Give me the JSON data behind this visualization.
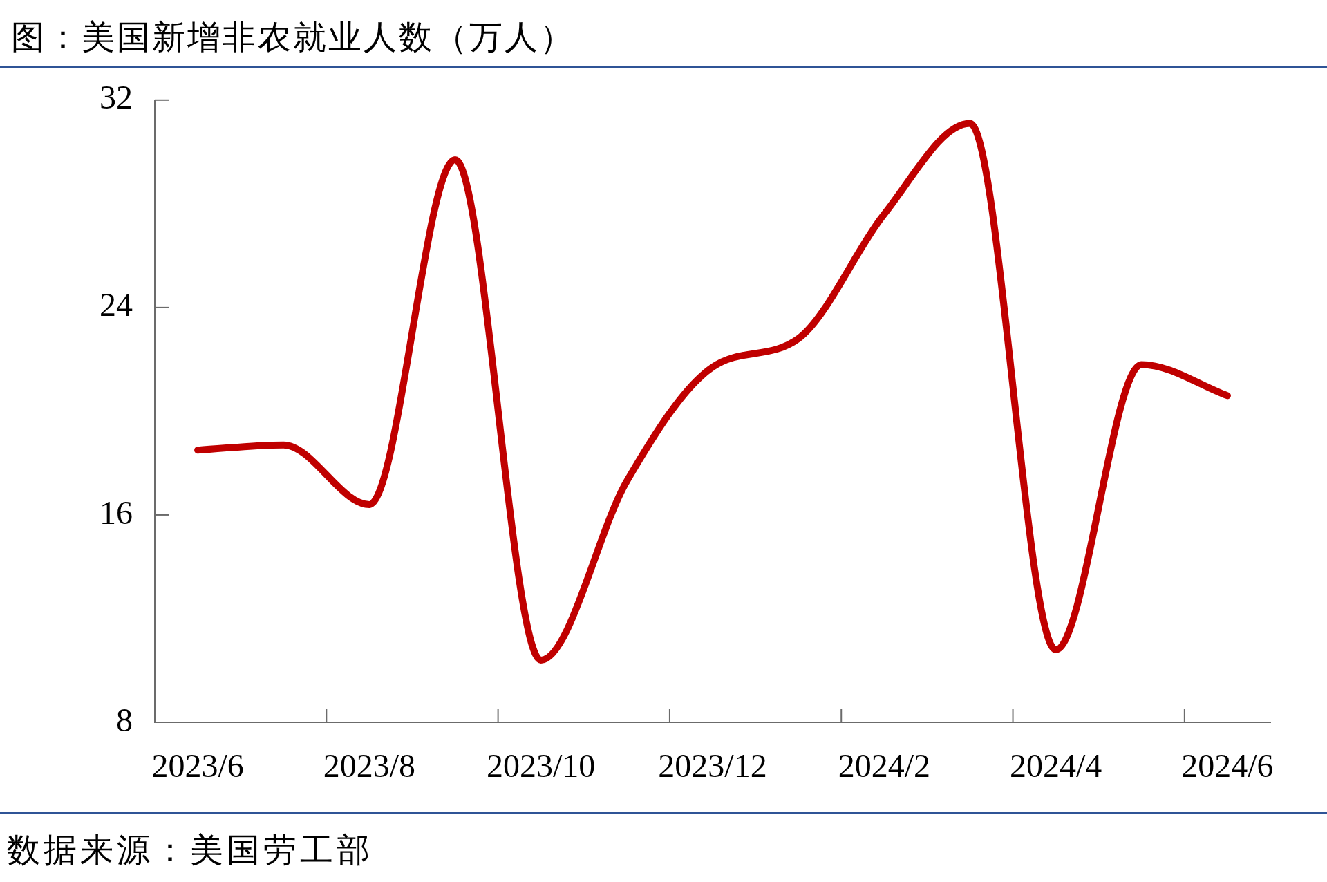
{
  "chart_data": {
    "type": "line",
    "title": "图：美国新增非农就业人数（万人）",
    "annotations": [
      "数据来源：美国劳工部"
    ],
    "categories": [
      "2023/6",
      null,
      "2023/8",
      null,
      "2023/10",
      null,
      "2023/12",
      null,
      "2024/2",
      null,
      "2024/4",
      null,
      "2024/6"
    ],
    "values": [
      18.5,
      18.7,
      16.4,
      29.7,
      10.4,
      17.3,
      21.7,
      22.8,
      27.6,
      31.1,
      10.8,
      21.8,
      20.6
    ],
    "color": "#c00000",
    "ylim": [
      8,
      32
    ],
    "yticks": [
      8,
      16,
      24,
      32
    ]
  }
}
